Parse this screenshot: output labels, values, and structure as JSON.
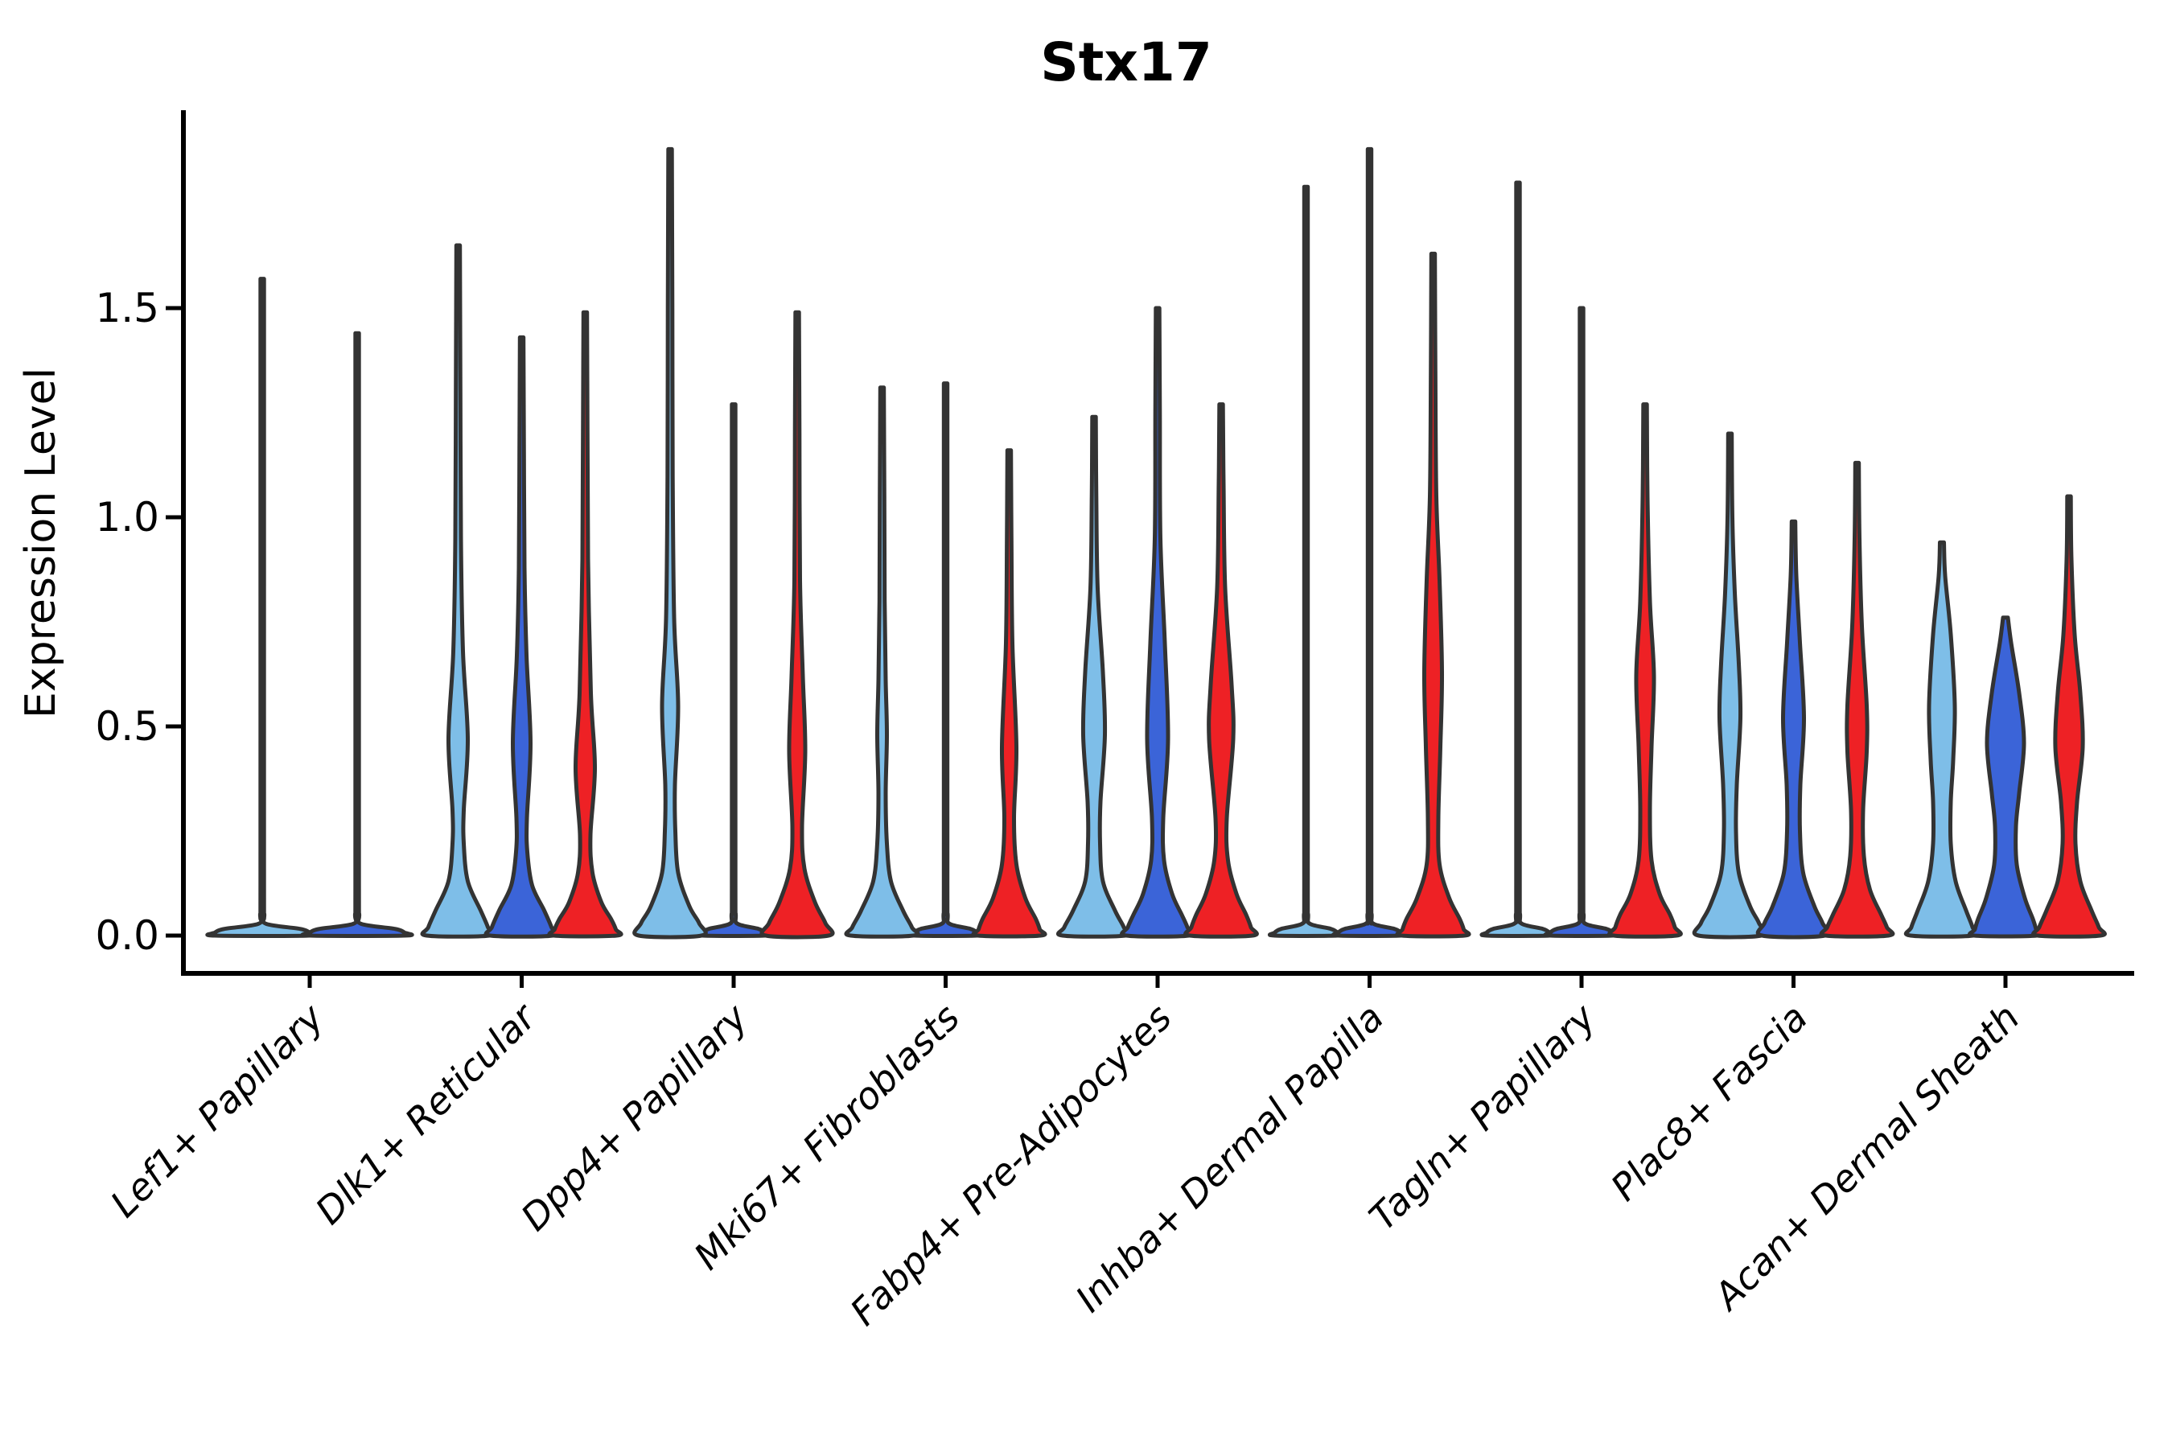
{
  "chart_data": {
    "type": "violin",
    "title": "Stx17",
    "ylabel": "Expression Level",
    "xlabel": "",
    "ytick_labels": [
      "0.0",
      "0.5",
      "1.0",
      "1.5"
    ],
    "ytick_values": [
      0.0,
      0.5,
      1.0,
      1.5
    ],
    "ylim": [
      -0.09,
      1.97
    ],
    "grid": false,
    "legend": "none",
    "categories": [
      "Lef1+ Papillary",
      "Dlk1+ Reticular",
      "Dpp4+ Papillary",
      "Mki67+ Fibroblasts",
      "Fabp4+ Pre-Adipocytes",
      "Inhba+ Dermal Papilla",
      "Tagln+ Papillary",
      "Plac8+ Fascia",
      "Acan+ Dermal Sheath"
    ],
    "series": [
      {
        "id": "light-blue",
        "color": "#7EBEE8"
      },
      {
        "id": "dark-blue",
        "color": "#3B64D8"
      },
      {
        "id": "red",
        "color": "#EE2125"
      }
    ],
    "outline_color": "#333333",
    "violins": [
      {
        "cat": 0,
        "series": 0,
        "slot": 0,
        "max": 1.57,
        "flat": true,
        "profile": [
          [
            1.57,
            2.2
          ],
          [
            0.86,
            2.2
          ],
          [
            0.12,
            2.2
          ],
          [
            0.05,
            2.6
          ],
          [
            0.028,
            5
          ],
          [
            0.016,
            47
          ],
          [
            0.007,
            59
          ],
          [
            0,
            59
          ]
        ]
      },
      {
        "cat": 0,
        "series": 1,
        "slot": 1,
        "max": 1.44,
        "flat": true,
        "profile": [
          [
            1.44,
            2.2
          ],
          [
            0.79,
            2.2
          ],
          [
            0.12,
            2.2
          ],
          [
            0.05,
            2.6
          ],
          [
            0.028,
            5
          ],
          [
            0.016,
            47
          ],
          [
            0.007,
            59
          ],
          [
            0,
            59
          ]
        ]
      },
      {
        "cat": 1,
        "series": 0,
        "slot": 0,
        "max": 1.65,
        "flat": false,
        "profile": [
          [
            1.65,
            2.2
          ],
          [
            1.3,
            2.8
          ],
          [
            0.95,
            3.5
          ],
          [
            0.68,
            6
          ],
          [
            0.47,
            12
          ],
          [
            0.3,
            7
          ],
          [
            0.22,
            7
          ],
          [
            0.13,
            12
          ],
          [
            0.06,
            28
          ],
          [
            0.02,
            37
          ],
          [
            0,
            39
          ]
        ]
      },
      {
        "cat": 1,
        "series": 1,
        "slot": 1,
        "max": 1.43,
        "flat": false,
        "profile": [
          [
            1.43,
            2.2
          ],
          [
            1.15,
            2.8
          ],
          [
            0.88,
            3.5
          ],
          [
            0.67,
            6
          ],
          [
            0.46,
            11
          ],
          [
            0.28,
            6.5
          ],
          [
            0.2,
            7
          ],
          [
            0.12,
            13
          ],
          [
            0.06,
            28
          ],
          [
            0.02,
            37
          ],
          [
            0,
            39
          ]
        ]
      },
      {
        "cat": 1,
        "series": 2,
        "slot": 2,
        "max": 1.49,
        "flat": false,
        "profile": [
          [
            1.49,
            2.2
          ],
          [
            1.2,
            2.8
          ],
          [
            0.9,
            3.5
          ],
          [
            0.58,
            7
          ],
          [
            0.4,
            12
          ],
          [
            0.24,
            6.5
          ],
          [
            0.15,
            9
          ],
          [
            0.08,
            20
          ],
          [
            0.04,
            32
          ],
          [
            0.015,
            38
          ],
          [
            0,
            39
          ]
        ]
      },
      {
        "cat": 2,
        "series": 0,
        "slot": 0,
        "max": 1.88,
        "flat": false,
        "profile": [
          [
            1.88,
            2.2
          ],
          [
            1.5,
            2.8
          ],
          [
            1.1,
            3.2
          ],
          [
            0.76,
            5
          ],
          [
            0.55,
            10
          ],
          [
            0.36,
            6
          ],
          [
            0.25,
            6.5
          ],
          [
            0.15,
            10
          ],
          [
            0.07,
            24
          ],
          [
            0.03,
            36
          ],
          [
            0,
            39
          ]
        ]
      },
      {
        "cat": 2,
        "series": 1,
        "slot": 1,
        "max": 1.27,
        "flat": true,
        "profile": [
          [
            1.27,
            2.2
          ],
          [
            0.7,
            2.2
          ],
          [
            0.12,
            2.2
          ],
          [
            0.05,
            2.6
          ],
          [
            0.028,
            5
          ],
          [
            0.016,
            31
          ],
          [
            0.007,
            39
          ],
          [
            0,
            39
          ]
        ]
      },
      {
        "cat": 2,
        "series": 2,
        "slot": 2,
        "max": 1.49,
        "flat": false,
        "profile": [
          [
            1.49,
            2.2
          ],
          [
            1.2,
            2.8
          ],
          [
            0.85,
            3.5
          ],
          [
            0.62,
            7
          ],
          [
            0.44,
            10
          ],
          [
            0.26,
            6
          ],
          [
            0.16,
            9
          ],
          [
            0.08,
            22
          ],
          [
            0.03,
            35
          ],
          [
            0,
            39
          ]
        ]
      },
      {
        "cat": 3,
        "series": 0,
        "slot": 0,
        "max": 1.31,
        "flat": false,
        "profile": [
          [
            1.31,
            2.2
          ],
          [
            1.05,
            2.8
          ],
          [
            0.8,
            3.2
          ],
          [
            0.61,
            4.5
          ],
          [
            0.48,
            6
          ],
          [
            0.34,
            4.5
          ],
          [
            0.22,
            6
          ],
          [
            0.13,
            11
          ],
          [
            0.06,
            26
          ],
          [
            0.02,
            37
          ],
          [
            0,
            39
          ]
        ]
      },
      {
        "cat": 3,
        "series": 1,
        "slot": 1,
        "max": 1.32,
        "flat": true,
        "profile": [
          [
            1.32,
            2.2
          ],
          [
            0.73,
            2.2
          ],
          [
            0.12,
            2.2
          ],
          [
            0.05,
            2.6
          ],
          [
            0.028,
            5
          ],
          [
            0.016,
            31
          ],
          [
            0.007,
            39
          ],
          [
            0,
            39
          ]
        ]
      },
      {
        "cat": 3,
        "series": 2,
        "slot": 2,
        "max": 1.16,
        "flat": false,
        "profile": [
          [
            1.16,
            2.2
          ],
          [
            0.95,
            2.8
          ],
          [
            0.7,
            4
          ],
          [
            0.45,
            9
          ],
          [
            0.28,
            6
          ],
          [
            0.17,
            9
          ],
          [
            0.09,
            20
          ],
          [
            0.04,
            33
          ],
          [
            0.015,
            38
          ],
          [
            0,
            39
          ]
        ]
      },
      {
        "cat": 4,
        "series": 0,
        "slot": 0,
        "max": 1.24,
        "flat": false,
        "profile": [
          [
            1.24,
            2.2
          ],
          [
            1.05,
            2.8
          ],
          [
            0.83,
            4.5
          ],
          [
            0.63,
            11
          ],
          [
            0.48,
            13.5
          ],
          [
            0.32,
            8
          ],
          [
            0.22,
            7.5
          ],
          [
            0.13,
            11
          ],
          [
            0.06,
            26
          ],
          [
            0.02,
            37
          ],
          [
            0,
            39
          ]
        ]
      },
      {
        "cat": 4,
        "series": 1,
        "slot": 1,
        "max": 1.5,
        "flat": false,
        "profile": [
          [
            1.5,
            2.2
          ],
          [
            1.25,
            2.8
          ],
          [
            0.95,
            3.5
          ],
          [
            0.7,
            9
          ],
          [
            0.47,
            13
          ],
          [
            0.28,
            7
          ],
          [
            0.18,
            8
          ],
          [
            0.1,
            18
          ],
          [
            0.05,
            30
          ],
          [
            0.02,
            37
          ],
          [
            0,
            39
          ]
        ]
      },
      {
        "cat": 4,
        "series": 2,
        "slot": 2,
        "max": 1.27,
        "flat": false,
        "profile": [
          [
            1.27,
            2.2
          ],
          [
            1.08,
            3
          ],
          [
            0.83,
            5
          ],
          [
            0.6,
            13
          ],
          [
            0.47,
            15
          ],
          [
            0.28,
            7
          ],
          [
            0.18,
            8.5
          ],
          [
            0.1,
            19
          ],
          [
            0.05,
            31
          ],
          [
            0.02,
            37
          ],
          [
            0,
            39
          ]
        ]
      },
      {
        "cat": 5,
        "series": 0,
        "slot": 0,
        "max": 1.79,
        "flat": true,
        "profile": [
          [
            1.79,
            2.2
          ],
          [
            0.98,
            2.2
          ],
          [
            0.12,
            2.2
          ],
          [
            0.05,
            2.6
          ],
          [
            0.028,
            5
          ],
          [
            0.016,
            31
          ],
          [
            0.007,
            39
          ],
          [
            0,
            39
          ]
        ]
      },
      {
        "cat": 5,
        "series": 1,
        "slot": 1,
        "max": 1.88,
        "flat": true,
        "profile": [
          [
            1.88,
            2.2
          ],
          [
            1.03,
            2.2
          ],
          [
            0.12,
            2.2
          ],
          [
            0.05,
            2.6
          ],
          [
            0.028,
            5
          ],
          [
            0.016,
            31
          ],
          [
            0.007,
            39
          ],
          [
            0,
            39
          ]
        ]
      },
      {
        "cat": 5,
        "series": 2,
        "slot": 2,
        "max": 1.63,
        "flat": false,
        "profile": [
          [
            1.63,
            2.2
          ],
          [
            1.35,
            2.8
          ],
          [
            1.05,
            4
          ],
          [
            0.85,
            8
          ],
          [
            0.63,
            11
          ],
          [
            0.45,
            9
          ],
          [
            0.28,
            6.5
          ],
          [
            0.17,
            8
          ],
          [
            0.09,
            20
          ],
          [
            0.04,
            33
          ],
          [
            0.015,
            38
          ],
          [
            0,
            39
          ]
        ]
      },
      {
        "cat": 6,
        "series": 0,
        "slot": 0,
        "max": 1.8,
        "flat": true,
        "profile": [
          [
            1.8,
            2.2
          ],
          [
            0.99,
            2.2
          ],
          [
            0.12,
            2.2
          ],
          [
            0.05,
            2.6
          ],
          [
            0.028,
            5
          ],
          [
            0.016,
            31
          ],
          [
            0.007,
            39
          ],
          [
            0,
            39
          ]
        ]
      },
      {
        "cat": 6,
        "series": 1,
        "slot": 1,
        "max": 1.5,
        "flat": true,
        "profile": [
          [
            1.5,
            2.2
          ],
          [
            0.82,
            2.2
          ],
          [
            0.12,
            2.2
          ],
          [
            0.05,
            2.6
          ],
          [
            0.028,
            5
          ],
          [
            0.016,
            31
          ],
          [
            0.007,
            39
          ],
          [
            0,
            39
          ]
        ]
      },
      {
        "cat": 6,
        "series": 2,
        "slot": 2,
        "max": 1.27,
        "flat": false,
        "profile": [
          [
            1.27,
            2.2
          ],
          [
            1.05,
            3
          ],
          [
            0.8,
            6
          ],
          [
            0.62,
            11
          ],
          [
            0.45,
            8
          ],
          [
            0.3,
            6
          ],
          [
            0.18,
            8
          ],
          [
            0.1,
            18
          ],
          [
            0.05,
            31
          ],
          [
            0.02,
            37
          ],
          [
            0,
            39
          ]
        ]
      },
      {
        "cat": 7,
        "series": 0,
        "slot": 0,
        "max": 1.2,
        "flat": false,
        "profile": [
          [
            1.2,
            2.2
          ],
          [
            1.0,
            3
          ],
          [
            0.82,
            6
          ],
          [
            0.65,
            11
          ],
          [
            0.52,
            13
          ],
          [
            0.36,
            8.5
          ],
          [
            0.25,
            7.5
          ],
          [
            0.15,
            11
          ],
          [
            0.07,
            25
          ],
          [
            0.03,
            36
          ],
          [
            0,
            39
          ]
        ]
      },
      {
        "cat": 7,
        "series": 1,
        "slot": 1,
        "max": 0.99,
        "flat": false,
        "profile": [
          [
            0.99,
            2.2
          ],
          [
            0.86,
            3.5
          ],
          [
            0.7,
            8
          ],
          [
            0.52,
            13
          ],
          [
            0.36,
            8.5
          ],
          [
            0.25,
            8
          ],
          [
            0.15,
            12
          ],
          [
            0.07,
            26
          ],
          [
            0.03,
            36
          ],
          [
            0,
            39
          ]
        ]
      },
      {
        "cat": 7,
        "series": 2,
        "slot": 2,
        "max": 1.13,
        "flat": false,
        "profile": [
          [
            1.13,
            2.2
          ],
          [
            0.95,
            3
          ],
          [
            0.74,
            6
          ],
          [
            0.55,
            12
          ],
          [
            0.44,
            12
          ],
          [
            0.3,
            7.5
          ],
          [
            0.19,
            8.5
          ],
          [
            0.11,
            16
          ],
          [
            0.05,
            30
          ],
          [
            0.02,
            37
          ],
          [
            0,
            39
          ]
        ]
      },
      {
        "cat": 8,
        "series": 0,
        "slot": 0,
        "max": 0.94,
        "flat": false,
        "profile": [
          [
            0.94,
            2.5
          ],
          [
            0.86,
            4
          ],
          [
            0.72,
            11
          ],
          [
            0.55,
            16
          ],
          [
            0.42,
            14
          ],
          [
            0.32,
            11
          ],
          [
            0.22,
            11
          ],
          [
            0.13,
            17
          ],
          [
            0.06,
            30
          ],
          [
            0.02,
            38
          ],
          [
            0,
            39
          ]
        ]
      },
      {
        "cat": 8,
        "series": 1,
        "slot": 1,
        "max": 0.76,
        "flat": false,
        "profile": [
          [
            0.76,
            3
          ],
          [
            0.7,
            7
          ],
          [
            0.58,
            17
          ],
          [
            0.46,
            23
          ],
          [
            0.34,
            17
          ],
          [
            0.26,
            13
          ],
          [
            0.17,
            14
          ],
          [
            0.09,
            24
          ],
          [
            0.04,
            34
          ],
          [
            0.015,
            38
          ],
          [
            0,
            39
          ]
        ]
      },
      {
        "cat": 8,
        "series": 2,
        "slot": 2,
        "max": 1.05,
        "flat": false,
        "profile": [
          [
            1.05,
            2.2
          ],
          [
            0.9,
            3
          ],
          [
            0.72,
            7
          ],
          [
            0.58,
            14
          ],
          [
            0.45,
            17
          ],
          [
            0.32,
            10
          ],
          [
            0.22,
            8
          ],
          [
            0.13,
            14
          ],
          [
            0.06,
            28
          ],
          [
            0.02,
            37
          ],
          [
            0,
            39
          ]
        ]
      }
    ]
  }
}
